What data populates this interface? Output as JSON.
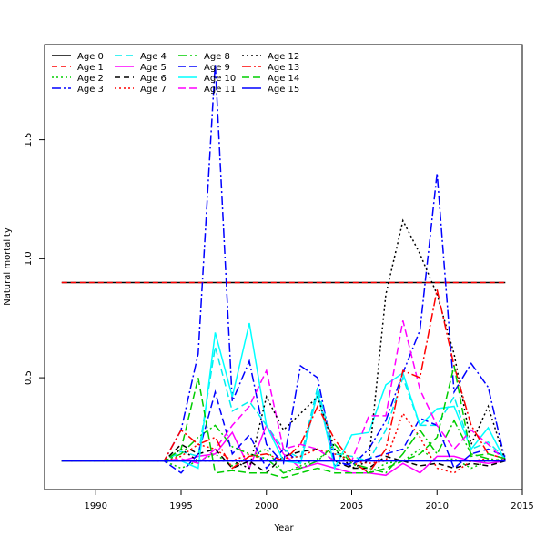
{
  "chart_data": {
    "type": "line",
    "title": "",
    "xlabel": "Year",
    "ylabel": "Natural mortality",
    "xlim": [
      1987,
      2015
    ],
    "ylim": [
      0.03,
      1.9
    ],
    "xticks": [
      1990,
      1995,
      2000,
      2005,
      2010,
      2015
    ],
    "yticks": [
      0.5,
      1.0,
      1.5
    ],
    "xtick_labels": [
      "1990",
      "1995",
      "2000",
      "2005",
      "2010",
      "2015"
    ],
    "ytick_labels": [
      "0.5",
      "1.0",
      "1.5"
    ],
    "legend_position": "top-left",
    "x": [
      1988,
      1989,
      1990,
      1991,
      1992,
      1993,
      1994,
      1995,
      1996,
      1997,
      1998,
      1999,
      2000,
      2001,
      2002,
      2003,
      2004,
      2005,
      2006,
      2007,
      2008,
      2009,
      2010,
      2011,
      2012,
      2013,
      2014
    ],
    "series": [
      {
        "name": "Age 0",
        "color": "#000000",
        "dash": "solid",
        "values": [
          0.9,
          0.9,
          0.9,
          0.9,
          0.9,
          0.9,
          0.9,
          0.9,
          0.9,
          0.9,
          0.9,
          0.9,
          0.9,
          0.9,
          0.9,
          0.9,
          0.9,
          0.9,
          0.9,
          0.9,
          0.9,
          0.9,
          0.9,
          0.9,
          0.9,
          0.9,
          0.9
        ]
      },
      {
        "name": "Age 1",
        "color": "#ff0000",
        "dash": "6,4",
        "values": [
          0.9,
          0.9,
          0.9,
          0.9,
          0.9,
          0.9,
          0.9,
          0.9,
          0.9,
          0.9,
          0.9,
          0.9,
          0.9,
          0.9,
          0.9,
          0.9,
          0.9,
          0.9,
          0.9,
          0.9,
          0.9,
          0.9,
          0.9,
          0.9,
          0.9,
          0.9,
          0.9
        ]
      },
      {
        "name": "Age 2",
        "color": "#00cd00",
        "dash": "2,3",
        "values": [
          0.15,
          0.15,
          0.15,
          0.15,
          0.15,
          0.15,
          0.15,
          0.12,
          0.15,
          0.18,
          0.13,
          0.17,
          0.2,
          0.1,
          0.13,
          0.16,
          0.2,
          0.14,
          0.1,
          0.14,
          0.15,
          0.2,
          0.15,
          0.16,
          0.12,
          0.15,
          0.16
        ]
      },
      {
        "name": "Age 3",
        "color": "#0000ff",
        "dash": "10,3,2,3",
        "values": [
          0.15,
          0.15,
          0.15,
          0.15,
          0.15,
          0.15,
          0.15,
          0.28,
          0.6,
          1.82,
          0.4,
          0.57,
          0.22,
          0.14,
          0.55,
          0.5,
          0.15,
          0.13,
          0.2,
          0.32,
          0.52,
          0.7,
          1.36,
          0.44,
          0.56,
          0.46,
          0.15
        ]
      },
      {
        "name": "Age 4",
        "color": "#00eeee",
        "dash": "8,4",
        "values": [
          0.15,
          0.15,
          0.15,
          0.15,
          0.15,
          0.15,
          0.15,
          0.19,
          0.17,
          0.63,
          0.36,
          0.4,
          0.3,
          0.2,
          0.16,
          0.46,
          0.18,
          0.17,
          0.15,
          0.28,
          0.5,
          0.3,
          0.3,
          0.42,
          0.2,
          0.23,
          0.16
        ]
      },
      {
        "name": "Age 5",
        "color": "#ff00ff",
        "dash": "solid",
        "values": [
          0.15,
          0.15,
          0.15,
          0.15,
          0.15,
          0.15,
          0.15,
          0.15,
          0.17,
          0.18,
          0.27,
          0.12,
          0.3,
          0.18,
          0.12,
          0.14,
          0.12,
          0.1,
          0.1,
          0.09,
          0.14,
          0.1,
          0.17,
          0.17,
          0.15,
          0.14,
          0.15
        ]
      },
      {
        "name": "Age 6",
        "color": "#000000",
        "dash": "6,4",
        "values": [
          0.15,
          0.15,
          0.15,
          0.15,
          0.15,
          0.15,
          0.15,
          0.22,
          0.18,
          0.2,
          0.12,
          0.15,
          0.1,
          0.17,
          0.19,
          0.2,
          0.15,
          0.12,
          0.12,
          0.17,
          0.15,
          0.13,
          0.14,
          0.12,
          0.14,
          0.13,
          0.15
        ]
      },
      {
        "name": "Age 7",
        "color": "#ff0000",
        "dash": "2,3",
        "values": [
          0.15,
          0.15,
          0.15,
          0.15,
          0.15,
          0.15,
          0.15,
          0.17,
          0.22,
          0.2,
          0.15,
          0.18,
          0.15,
          0.16,
          0.17,
          0.2,
          0.18,
          0.15,
          0.14,
          0.15,
          0.35,
          0.25,
          0.12,
          0.1,
          0.15,
          0.16,
          0.15
        ]
      },
      {
        "name": "Age 8",
        "color": "#00cd00",
        "dash": "10,3,2,3",
        "values": [
          0.15,
          0.15,
          0.15,
          0.15,
          0.15,
          0.15,
          0.15,
          0.18,
          0.25,
          0.3,
          0.21,
          0.18,
          0.16,
          0.1,
          0.12,
          0.15,
          0.22,
          0.14,
          0.12,
          0.1,
          0.18,
          0.28,
          0.18,
          0.32,
          0.18,
          0.16,
          0.15
        ]
      },
      {
        "name": "Age 9",
        "color": "#0000ff",
        "dash": "8,4",
        "values": [
          0.15,
          0.15,
          0.15,
          0.15,
          0.15,
          0.15,
          0.15,
          0.1,
          0.18,
          0.44,
          0.18,
          0.26,
          0.12,
          0.2,
          0.14,
          0.44,
          0.13,
          0.14,
          0.16,
          0.18,
          0.2,
          0.33,
          0.3,
          0.12,
          0.18,
          0.2,
          0.17
        ]
      },
      {
        "name": "Age 10",
        "color": "#00ffff",
        "dash": "solid",
        "values": [
          0.15,
          0.15,
          0.15,
          0.15,
          0.15,
          0.15,
          0.15,
          0.15,
          0.12,
          0.69,
          0.42,
          0.73,
          0.3,
          0.15,
          0.14,
          0.44,
          0.12,
          0.26,
          0.27,
          0.47,
          0.52,
          0.3,
          0.37,
          0.38,
          0.2,
          0.29,
          0.15
        ]
      },
      {
        "name": "Age 11",
        "color": "#ff00ff",
        "dash": "8,4",
        "values": [
          0.15,
          0.15,
          0.15,
          0.15,
          0.15,
          0.15,
          0.15,
          0.16,
          0.14,
          0.2,
          0.3,
          0.38,
          0.53,
          0.2,
          0.22,
          0.2,
          0.15,
          0.15,
          0.34,
          0.34,
          0.74,
          0.45,
          0.3,
          0.2,
          0.28,
          0.22,
          0.15
        ]
      },
      {
        "name": "Age 12",
        "color": "#000000",
        "dash": "2,3",
        "values": [
          0.15,
          0.15,
          0.15,
          0.15,
          0.15,
          0.15,
          0.15,
          0.2,
          0.15,
          0.15,
          0.15,
          0.12,
          0.42,
          0.28,
          0.35,
          0.42,
          0.2,
          0.12,
          0.15,
          0.85,
          1.16,
          1.02,
          0.85,
          0.6,
          0.22,
          0.38,
          0.15
        ]
      },
      {
        "name": "Age 13",
        "color": "#ff0000",
        "dash": "10,3,2,3",
        "values": [
          0.15,
          0.15,
          0.15,
          0.15,
          0.15,
          0.15,
          0.15,
          0.28,
          0.22,
          0.25,
          0.12,
          0.17,
          0.18,
          0.15,
          0.22,
          0.38,
          0.24,
          0.15,
          0.1,
          0.2,
          0.53,
          0.5,
          0.87,
          0.55,
          0.3,
          0.18,
          0.16
        ]
      },
      {
        "name": "Age 14",
        "color": "#00cd00",
        "dash": "8,4",
        "values": [
          0.15,
          0.15,
          0.15,
          0.15,
          0.15,
          0.15,
          0.15,
          0.2,
          0.5,
          0.1,
          0.11,
          0.1,
          0.1,
          0.08,
          0.1,
          0.12,
          0.1,
          0.1,
          0.1,
          0.12,
          0.15,
          0.18,
          0.25,
          0.55,
          0.17,
          0.18,
          0.16
        ]
      },
      {
        "name": "Age 15",
        "color": "#0000ff",
        "dash": "solid",
        "values": [
          0.15,
          0.15,
          0.15,
          0.15,
          0.15,
          0.15,
          0.15,
          0.15,
          0.15,
          0.15,
          0.15,
          0.15,
          0.15,
          0.15,
          0.15,
          0.15,
          0.15,
          0.15,
          0.15,
          0.15,
          0.15,
          0.15,
          0.15,
          0.15,
          0.15,
          0.15,
          0.15
        ]
      }
    ]
  }
}
